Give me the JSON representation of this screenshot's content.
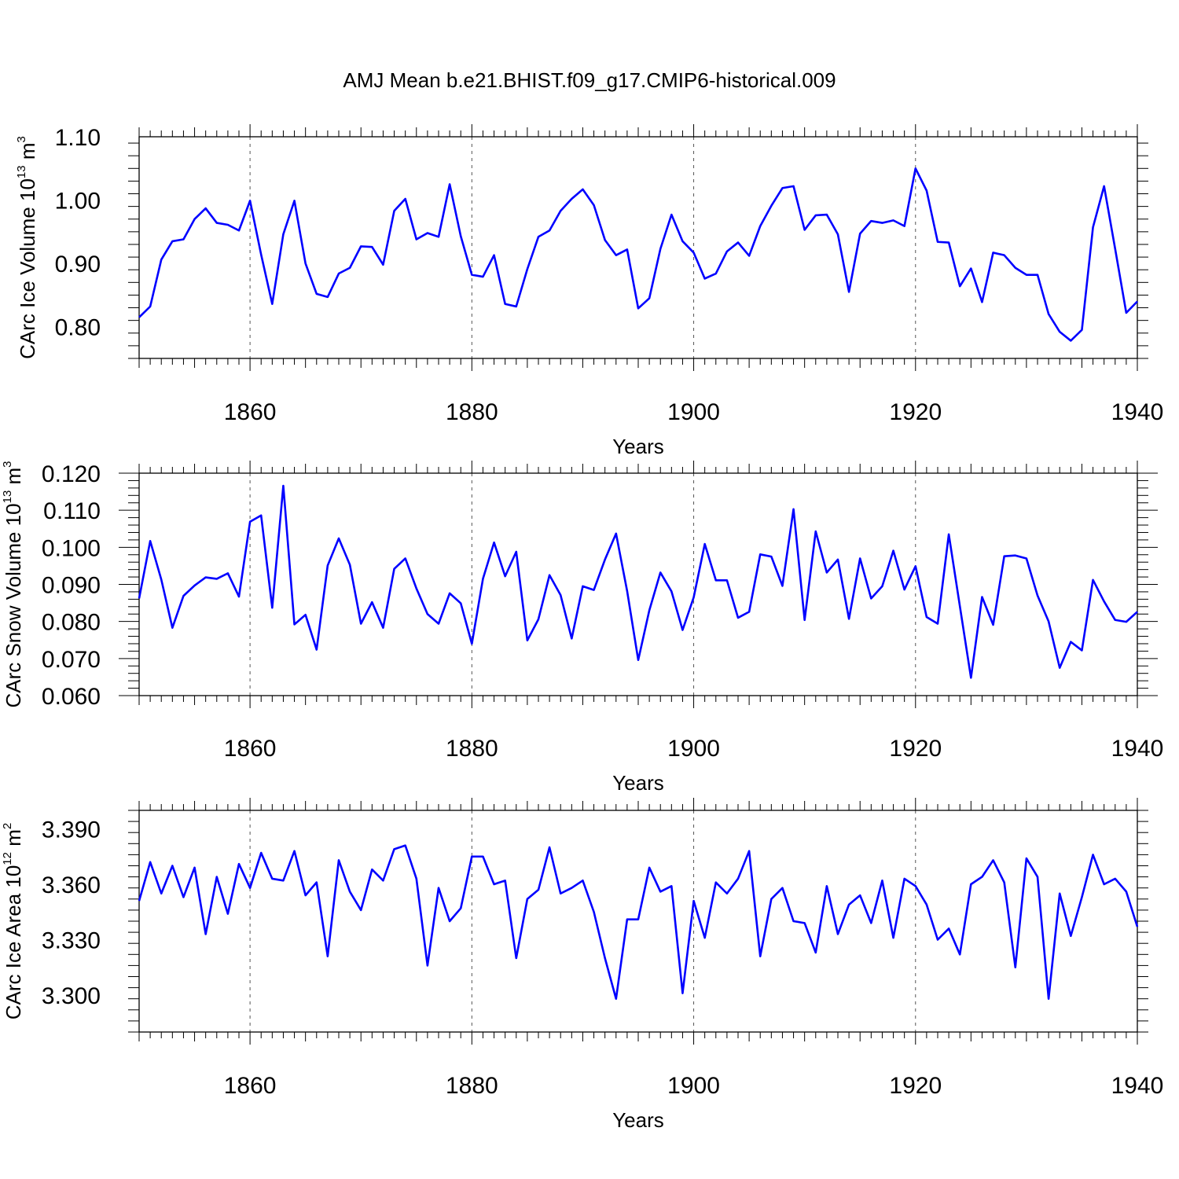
{
  "title": "AMJ Mean b.e21.BHIST.f09_g17.CMIP6-historical.009",
  "colors": {
    "series": "#0000ff",
    "axis": "#000000",
    "grid": "#555555"
  },
  "chart_data": [
    {
      "type": "line",
      "title": "AMJ Mean b.e21.BHIST.f09_g17.CMIP6-historical.009",
      "xlabel": "Years",
      "ylabel": {
        "base": "CArc Ice Volume 10",
        "exp": "13",
        "unit": " m",
        "unit_exp": "3"
      },
      "xlim": [
        1850,
        1940
      ],
      "ylim": [
        0.75,
        1.1
      ],
      "xticks": [
        "1860",
        "1880",
        "1900",
        "1920",
        "1940"
      ],
      "yticks": [
        "0.80",
        "0.90",
        "1.00",
        "1.10"
      ],
      "x_start": 1850,
      "values": [
        0.815,
        0.832,
        0.906,
        0.935,
        0.938,
        0.97,
        0.987,
        0.964,
        0.961,
        0.952,
        0.999,
        0.914,
        0.836,
        0.946,
        0.999,
        0.9,
        0.852,
        0.847,
        0.884,
        0.893,
        0.927,
        0.926,
        0.898,
        0.983,
        1.002,
        0.938,
        0.948,
        0.942,
        1.025,
        0.943,
        0.882,
        0.879,
        0.913,
        0.836,
        0.832,
        0.891,
        0.942,
        0.952,
        0.983,
        1.002,
        1.017,
        0.992,
        0.937,
        0.913,
        0.922,
        0.829,
        0.845,
        0.923,
        0.977,
        0.935,
        0.917,
        0.876,
        0.884,
        0.919,
        0.933,
        0.912,
        0.959,
        0.991,
        1.019,
        1.022,
        0.953,
        0.976,
        0.977,
        0.946,
        0.855,
        0.947,
        0.967,
        0.964,
        0.968,
        0.959,
        1.05,
        1.015,
        0.934,
        0.933,
        0.864,
        0.892,
        0.839,
        0.917,
        0.913,
        0.893,
        0.882,
        0.882,
        0.82,
        0.792,
        0.778,
        0.795,
        0.957,
        1.022,
        0.923,
        0.822,
        0.84
      ]
    },
    {
      "type": "line",
      "xlabel": "Years",
      "ylabel": {
        "base": "CArc Snow Volume 10",
        "exp": "13",
        "unit": " m",
        "unit_exp": "3"
      },
      "xlim": [
        1850,
        1940
      ],
      "ylim": [
        0.06,
        0.12
      ],
      "xticks": [
        "1860",
        "1880",
        "1900",
        "1920",
        "1940"
      ],
      "yticks": [
        "0.060",
        "0.070",
        "0.080",
        "0.090",
        "0.100",
        "0.110",
        "0.120"
      ],
      "x_start": 1850,
      "values": [
        0.0862,
        0.1017,
        0.0913,
        0.0783,
        0.0869,
        0.0897,
        0.0919,
        0.0915,
        0.093,
        0.0867,
        0.1069,
        0.1086,
        0.0837,
        0.1166,
        0.0792,
        0.0818,
        0.0724,
        0.0951,
        0.1024,
        0.0953,
        0.0794,
        0.0852,
        0.0783,
        0.0942,
        0.097,
        0.0889,
        0.082,
        0.0794,
        0.0876,
        0.0849,
        0.074,
        0.0915,
        0.1013,
        0.0922,
        0.0988,
        0.0749,
        0.0806,
        0.0925,
        0.0871,
        0.0754,
        0.0895,
        0.0885,
        0.0967,
        0.1037,
        0.0882,
        0.0696,
        0.083,
        0.0932,
        0.0881,
        0.0777,
        0.0865,
        0.1009,
        0.0911,
        0.0911,
        0.081,
        0.0826,
        0.0981,
        0.0975,
        0.0896,
        0.1103,
        0.0804,
        0.1043,
        0.0932,
        0.0967,
        0.0807,
        0.097,
        0.0862,
        0.0895,
        0.0991,
        0.0886,
        0.0949,
        0.0812,
        0.0794,
        0.1035,
        0.0841,
        0.0648,
        0.0866,
        0.0791,
        0.0976,
        0.0978,
        0.097,
        0.087,
        0.08,
        0.0675,
        0.0745,
        0.0722,
        0.0912,
        0.0854,
        0.0804,
        0.0799,
        0.0826
      ]
    },
    {
      "type": "line",
      "xlabel": "Years",
      "ylabel": {
        "base": "CArc Ice Area 10",
        "exp": "12",
        "unit": " m",
        "unit_exp": "2"
      },
      "xlim": [
        1850,
        1940
      ],
      "ylim": [
        3.28,
        3.4
      ],
      "xticks": [
        "1860",
        "1880",
        "1900",
        "1920",
        "1940"
      ],
      "yticks": [
        "3.300",
        "3.330",
        "3.360",
        "3.390"
      ],
      "x_start": 1850,
      "values": [
        3.351,
        3.372,
        3.355,
        3.37,
        3.353,
        3.369,
        3.333,
        3.364,
        3.344,
        3.371,
        3.358,
        3.377,
        3.363,
        3.362,
        3.378,
        3.354,
        3.361,
        3.321,
        3.373,
        3.356,
        3.346,
        3.368,
        3.362,
        3.379,
        3.381,
        3.363,
        3.316,
        3.358,
        3.34,
        3.347,
        3.375,
        3.375,
        3.36,
        3.362,
        3.32,
        3.352,
        3.357,
        3.38,
        3.355,
        3.358,
        3.362,
        3.345,
        3.32,
        3.298,
        3.341,
        3.341,
        3.369,
        3.356,
        3.359,
        3.301,
        3.351,
        3.331,
        3.361,
        3.355,
        3.363,
        3.378,
        3.321,
        3.352,
        3.358,
        3.34,
        3.339,
        3.323,
        3.359,
        3.333,
        3.349,
        3.354,
        3.339,
        3.362,
        3.331,
        3.363,
        3.359,
        3.349,
        3.33,
        3.336,
        3.322,
        3.36,
        3.364,
        3.373,
        3.361,
        3.315,
        3.374,
        3.364,
        3.298,
        3.355,
        3.332,
        3.353,
        3.376,
        3.36,
        3.363,
        3.356,
        3.337
      ]
    }
  ]
}
